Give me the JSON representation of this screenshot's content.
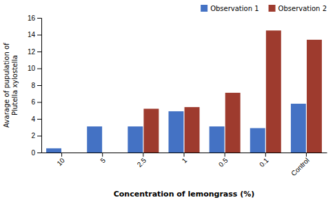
{
  "chart_data": {
    "type": "bar",
    "xlabel": "Concentration of lemongrass (%)",
    "ylabel": "Avarage of pupulation of\nPlutella xylostella",
    "categories": [
      "10",
      "5",
      "2.5",
      "1",
      "0.5",
      "0.1",
      "Control"
    ],
    "series": [
      {
        "name": "Observation 1",
        "color": "#4472C4",
        "values": [
          0.5,
          3.1,
          3.1,
          4.9,
          3.1,
          2.9,
          5.8
        ]
      },
      {
        "name": "Observation 2",
        "color": "#9E3B2E",
        "values": [
          0.0,
          0.0,
          5.2,
          5.4,
          7.1,
          14.5,
          13.4
        ]
      }
    ],
    "ylim": [
      0,
      16
    ],
    "yticks": [
      0,
      2,
      4,
      6,
      8,
      10,
      12,
      14,
      16
    ],
    "grid": false,
    "legend": "upper right"
  }
}
